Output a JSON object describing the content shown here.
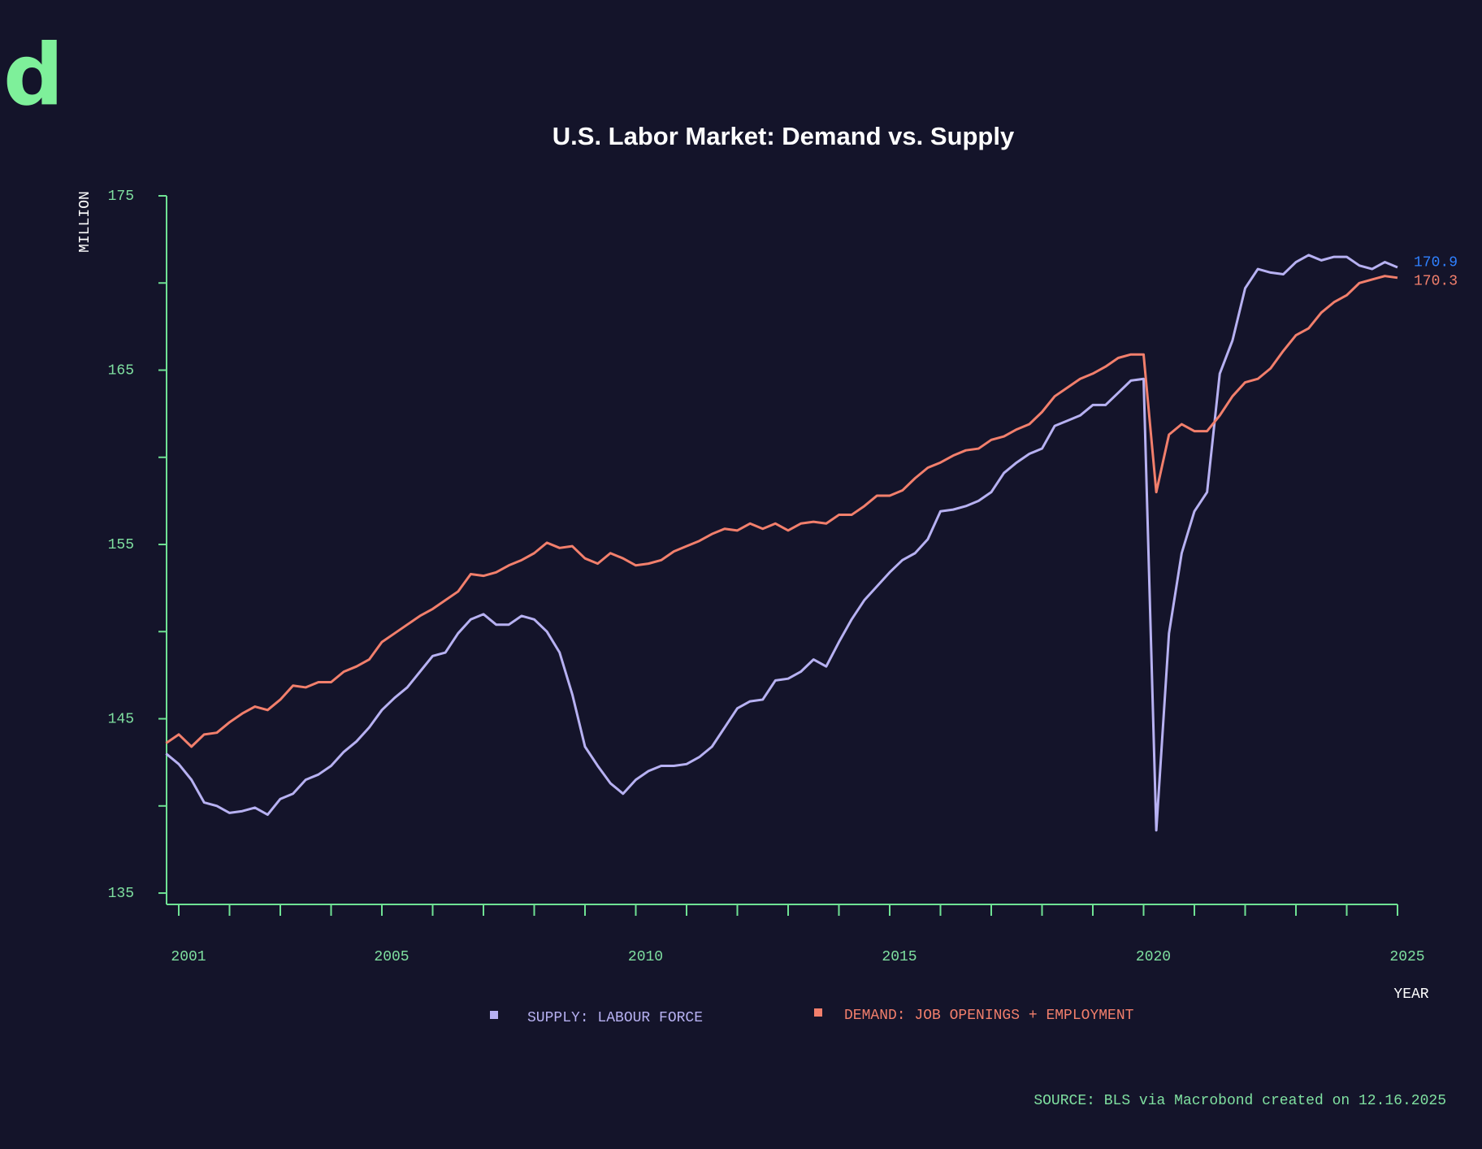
{
  "logo": "d",
  "chart_data": {
    "type": "line",
    "title": "U.S. Labor Market: Demand vs. Supply",
    "y_label": "MILLION",
    "x_label": "YEAR",
    "source": "SOURCE: BLS via Macrobond created on 12.16.2025",
    "x": [
      2000.75,
      2001,
      2001.25,
      2001.5,
      2001.75,
      2002,
      2002.25,
      2002.5,
      2002.75,
      2003,
      2003.25,
      2003.5,
      2003.75,
      2004,
      2004.25,
      2004.5,
      2004.75,
      2005,
      2005.25,
      2005.5,
      2005.75,
      2006,
      2006.25,
      2006.5,
      2006.75,
      2007,
      2007.25,
      2007.5,
      2007.75,
      2008,
      2008.25,
      2008.5,
      2008.75,
      2009,
      2009.25,
      2009.5,
      2009.75,
      2010,
      2010.25,
      2010.5,
      2010.75,
      2011,
      2011.25,
      2011.5,
      2011.75,
      2012,
      2012.25,
      2012.5,
      2012.75,
      2013,
      2013.25,
      2013.5,
      2013.75,
      2014,
      2014.25,
      2014.5,
      2014.75,
      2015,
      2015.25,
      2015.5,
      2015.75,
      2016,
      2016.25,
      2016.5,
      2016.75,
      2017,
      2017.25,
      2017.5,
      2017.75,
      2018,
      2018.25,
      2018.5,
      2018.75,
      2019,
      2019.25,
      2019.5,
      2019.75,
      2020,
      2020.25,
      2020.5,
      2020.75,
      2021,
      2021.25,
      2021.5,
      2021.75,
      2022,
      2022.25,
      2022.5,
      2022.75,
      2023,
      2023.25,
      2023.5,
      2023.75,
      2024,
      2024.25,
      2024.5,
      2024.75,
      2025
    ],
    "series": [
      {
        "name": "SUPPLY: LABOUR FORCE",
        "color": "#b7b1f2",
        "label_color": "#2f80ff",
        "values": [
          143.0,
          142.4,
          141.5,
          140.2,
          140.0,
          139.6,
          139.7,
          139.9,
          139.5,
          140.4,
          140.7,
          141.5,
          141.8,
          142.3,
          143.1,
          143.7,
          144.5,
          145.5,
          146.2,
          146.8,
          147.7,
          148.6,
          148.8,
          149.9,
          150.7,
          151.0,
          150.4,
          150.4,
          150.9,
          150.7,
          150.0,
          148.8,
          146.4,
          143.4,
          142.3,
          141.3,
          140.7,
          141.5,
          142.0,
          142.3,
          142.3,
          142.4,
          142.8,
          143.4,
          144.5,
          145.6,
          146.0,
          146.1,
          147.2,
          147.3,
          147.7,
          148.4,
          148.0,
          149.4,
          150.7,
          151.8,
          152.6,
          153.4,
          154.1,
          154.5,
          155.3,
          156.9,
          157.0,
          157.2,
          157.5,
          158.0,
          159.1,
          159.7,
          160.2,
          160.5,
          161.8,
          162.1,
          162.4,
          163.0,
          163.0,
          163.7,
          164.4,
          164.5,
          138.6,
          149.9,
          154.5,
          156.9,
          158.0,
          164.8,
          166.7,
          169.7,
          170.8,
          170.6,
          170.5,
          171.2,
          171.6,
          171.3,
          171.5,
          171.5,
          171.0,
          170.8,
          171.2,
          170.9
        ]
      },
      {
        "name": "DEMAND: JOB OPENINGS + EMPLOYMENT",
        "color": "#f27f6c",
        "label_color": "#f27f6c",
        "values": [
          143.6,
          144.1,
          143.4,
          144.1,
          144.2,
          144.8,
          145.3,
          145.7,
          145.5,
          146.1,
          146.9,
          146.8,
          147.1,
          147.1,
          147.7,
          148.0,
          148.4,
          149.4,
          149.9,
          150.4,
          150.9,
          151.3,
          151.8,
          152.3,
          153.3,
          153.2,
          153.4,
          153.8,
          154.1,
          154.5,
          155.1,
          154.8,
          154.9,
          154.2,
          153.9,
          154.5,
          154.2,
          153.8,
          153.9,
          154.1,
          154.6,
          154.9,
          155.2,
          155.6,
          155.9,
          155.8,
          156.2,
          155.9,
          156.2,
          155.8,
          156.2,
          156.3,
          156.2,
          156.7,
          156.7,
          157.2,
          157.8,
          157.8,
          158.1,
          158.8,
          159.4,
          159.7,
          160.1,
          160.4,
          160.5,
          161.0,
          161.2,
          161.6,
          161.9,
          162.6,
          163.5,
          164.0,
          164.5,
          164.8,
          165.2,
          165.7,
          165.9,
          165.9,
          158.0,
          161.3,
          161.9,
          161.5,
          161.5,
          162.4,
          163.5,
          164.3,
          164.5,
          165.1,
          166.1,
          167.0,
          167.4,
          168.3,
          168.9,
          169.3,
          170.0,
          170.2,
          170.4,
          170.3
        ]
      }
    ],
    "xlim": [
      2000.76,
      2025
    ],
    "xticks": [
      2001,
      {
        "value": 2002,
        "label": null
      },
      {
        "value": 2003,
        "label": null
      },
      {
        "value": 2004,
        "label": null
      },
      2005,
      {
        "value": 2006,
        "label": null
      },
      {
        "value": 2007,
        "label": null
      },
      {
        "value": 2008,
        "label": null
      },
      {
        "value": 2009,
        "label": null
      },
      2010,
      {
        "value": 2011,
        "label": null
      },
      {
        "value": 2012,
        "label": null
      },
      {
        "value": 2013,
        "label": null
      },
      {
        "value": 2014,
        "label": null
      },
      2015,
      {
        "value": 2016,
        "label": null
      },
      {
        "value": 2017,
        "label": null
      },
      {
        "value": 2018,
        "label": null
      },
      {
        "value": 2019,
        "label": null
      },
      2020,
      {
        "value": 2021,
        "label": null
      },
      {
        "value": 2022,
        "label": null
      },
      {
        "value": 2023,
        "label": null
      },
      {
        "value": 2024,
        "label": null
      },
      2025
    ],
    "ylim": [
      134.35,
      175
    ],
    "yticks": [
      135,
      {
        "value": 140,
        "label": null
      },
      145,
      {
        "value": 150,
        "label": null
      },
      155,
      {
        "value": 160,
        "label": null
      },
      165,
      {
        "value": 170,
        "label": null
      },
      175
    ],
    "grid": false,
    "axis_color": "#6fe294",
    "end_labels": true
  }
}
